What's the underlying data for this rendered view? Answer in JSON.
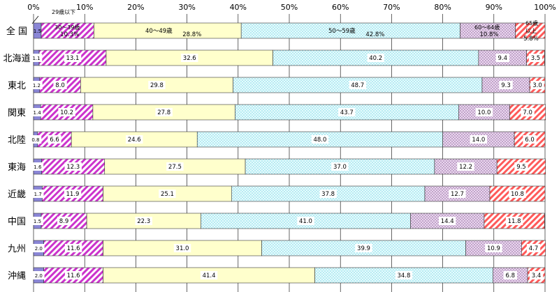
{
  "chart_data": {
    "type": "bar",
    "orientation": "horizontal",
    "stacked": true,
    "percent": true,
    "xlim": [
      0,
      100
    ],
    "x_ticks": [
      "0%",
      "10%",
      "20%",
      "30%",
      "40%",
      "50%",
      "60%",
      "70%",
      "80%",
      "90%",
      "100%"
    ],
    "categories": [
      "全 国",
      "北海道",
      "東北",
      "関東",
      "北陸",
      "東海",
      "近畿",
      "中国",
      "九州",
      "沖縄"
    ],
    "series": [
      {
        "name": "29歳以下",
        "color": "#8a86d6",
        "pattern": "solid",
        "values": [
          1.5,
          1.1,
          1.2,
          1.4,
          0.8,
          1.6,
          1.7,
          1.5,
          2.0,
          2.0
        ],
        "labels": [
          "1.5",
          "1.1",
          "1.2",
          "1.4",
          "0.8",
          "1.6",
          "1.7",
          "1.5",
          "2.0",
          "2.0"
        ]
      },
      {
        "name": "30～39歳",
        "color": "#cc33cc",
        "pattern": "hatch",
        "values": [
          10.3,
          13.1,
          8.0,
          10.2,
          6.6,
          12.3,
          11.9,
          8.9,
          11.6,
          11.6
        ],
        "labels": [
          "10.3%",
          "13.1",
          "8.0",
          "10.2",
          "6.6",
          "12.3",
          "11.9",
          "8.9",
          "11.6",
          "11.6"
        ]
      },
      {
        "name": "40～49歳",
        "color": "#ffffcc",
        "pattern": "solid",
        "values": [
          28.8,
          32.6,
          29.8,
          27.8,
          24.6,
          27.5,
          25.1,
          22.3,
          31.0,
          41.4
        ],
        "labels": [
          "28.8%",
          "32.6",
          "29.8",
          "27.8",
          "24.6",
          "27.5",
          "25.1",
          "22.3",
          "31.0",
          "41.4"
        ]
      },
      {
        "name": "50～59歳",
        "color": "#ccf2f6",
        "pattern": "dots",
        "values": [
          42.8,
          40.2,
          48.7,
          43.7,
          48.0,
          37.0,
          37.8,
          41.0,
          39.9,
          34.8
        ],
        "labels": [
          "42.8%",
          "40.2",
          "48.7",
          "43.7",
          "48.0",
          "37.0",
          "37.8",
          "41.0",
          "39.9",
          "34.8"
        ]
      },
      {
        "name": "60～64歳",
        "color": "#d2b4d8",
        "pattern": "dots",
        "values": [
          10.8,
          9.4,
          9.3,
          10.0,
          14.0,
          12.2,
          12.7,
          14.4,
          10.9,
          6.8
        ],
        "labels": [
          "10.8%",
          "9.4",
          "9.3",
          "10.0",
          "14.0",
          "12.2",
          "12.7",
          "14.4",
          "10.9",
          "6.8"
        ]
      },
      {
        "name": "65歳以上",
        "color": "#ff5a5a",
        "pattern": "hatch",
        "values": [
          5.8,
          3.5,
          3.0,
          7.0,
          6.0,
          9.5,
          10.8,
          11.8,
          4.7,
          3.4
        ],
        "labels": [
          "5.8%",
          "3.5",
          "3.0",
          "7.0",
          "6.0",
          "9.5",
          "10.8",
          "11.8",
          "4.7",
          "3.4"
        ]
      }
    ],
    "annotations": {
      "under30": "29歳以下",
      "age30s": "30～39歳",
      "age40s": "40～49歳",
      "age50s": "50～59歳",
      "age60_64": "60～64歳",
      "over65_line1": "65歳",
      "over65_line2": "以上"
    }
  }
}
